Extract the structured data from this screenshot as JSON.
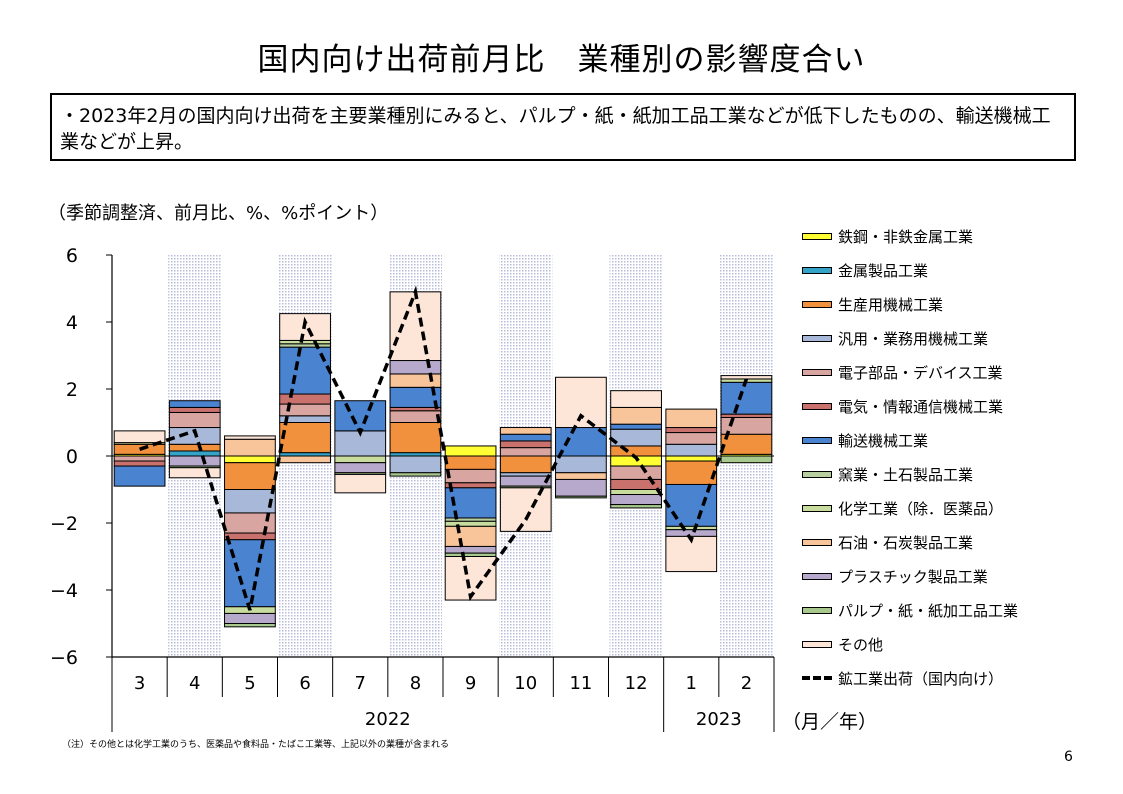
{
  "title": "国内向け出荷前月比　業種別の影響度合い",
  "summary": "・2023年2月の国内向け出荷を主要業種別にみると、パルプ・紙・紙加工品工業などが低下したものの、輸送機械工業などが上昇。",
  "unit_note": "（季節調整済、前月比、%、%ポイント）",
  "unit_label": "（月／年）",
  "footnote": "（注）その他とは化学工業のうち、医薬品や食料品・たばこ工業等、上記以外の業種が含まれる",
  "page_number": "6",
  "chart_data": {
    "type": "bar",
    "stacked": true,
    "categories": [
      "3",
      "4",
      "5",
      "6",
      "7",
      "8",
      "9",
      "10",
      "11",
      "12",
      "1",
      "2"
    ],
    "year_labels": [
      "2022",
      "2023"
    ],
    "ylim": [
      -6,
      6
    ],
    "yticks": [
      "6",
      "4",
      "2",
      "0",
      "−2",
      "−4",
      "−6"
    ],
    "shaded_categories": [
      "4",
      "6",
      "8",
      "10",
      "12",
      "2"
    ],
    "series": [
      {
        "name": "鉄鋼・非鉄金属工業",
        "color": "#ffff33",
        "values": [
          0.05,
          0.0,
          -0.2,
          0.0,
          0.0,
          0.0,
          0.3,
          0.0,
          0.0,
          -0.3,
          -0.15,
          0.05
        ]
      },
      {
        "name": "金属製品工業",
        "color": "#33a3c8",
        "values": [
          0.0,
          0.15,
          0.0,
          0.1,
          0.0,
          0.1,
          0.0,
          0.0,
          0.0,
          0.0,
          0.0,
          0.0
        ]
      },
      {
        "name": "生産用機械工業",
        "color": "#f2913d",
        "values": [
          0.3,
          0.2,
          -0.8,
          0.9,
          0.0,
          0.9,
          -0.4,
          -0.5,
          0.0,
          0.3,
          -0.7,
          0.6
        ]
      },
      {
        "name": "汎用・業務用機械工業",
        "color": "#a8b8d8",
        "values": [
          0.0,
          0.5,
          -0.7,
          0.2,
          0.75,
          -0.5,
          0.0,
          -0.1,
          -0.5,
          0.5,
          0.35,
          0.0
        ]
      },
      {
        "name": "電子部品・デバイス工業",
        "color": "#d9a5a0",
        "values": [
          -0.15,
          0.45,
          -0.6,
          0.35,
          0.0,
          0.35,
          -0.4,
          0.25,
          0.0,
          -0.4,
          0.35,
          0.5
        ]
      },
      {
        "name": "電気・情報通信機械工業",
        "color": "#c8716d",
        "values": [
          -0.15,
          0.15,
          -0.2,
          0.3,
          0.0,
          0.1,
          -0.15,
          0.2,
          0.0,
          -0.3,
          0.15,
          0.1
        ]
      },
      {
        "name": "輸送機械工業",
        "color": "#4a83d0",
        "values": [
          -0.6,
          0.2,
          -2.0,
          1.4,
          0.9,
          0.6,
          -0.9,
          0.2,
          0.85,
          0.15,
          -1.25,
          0.95
        ]
      },
      {
        "name": "窯業・土石製品工業",
        "color": "#b9cfa0",
        "values": [
          0.0,
          0.0,
          0.0,
          0.1,
          0.0,
          0.0,
          -0.1,
          0.0,
          0.0,
          0.0,
          0.0,
          0.0
        ]
      },
      {
        "name": "化学工業（除．医薬品）",
        "color": "#c8dc9e",
        "values": [
          0.05,
          0.0,
          -0.2,
          0.1,
          -0.2,
          0.0,
          -0.15,
          0.0,
          0.0,
          -0.15,
          -0.1,
          0.1
        ]
      },
      {
        "name": "石油・石炭製品工業",
        "color": "#f8c49a",
        "values": [
          0.0,
          0.0,
          0.5,
          -0.2,
          0.0,
          0.4,
          -0.6,
          0.2,
          -0.2,
          0.5,
          0.55,
          0.0
        ]
      },
      {
        "name": "プラスチック製品工業",
        "color": "#b7a9cc",
        "values": [
          0.0,
          -0.3,
          -0.3,
          0.0,
          -0.3,
          0.4,
          -0.2,
          -0.3,
          -0.5,
          -0.3,
          -0.2,
          0.0
        ]
      },
      {
        "name": "パルプ・紙・紙加工品工業",
        "color": "#a7c98e",
        "values": [
          0.0,
          -0.05,
          -0.1,
          0.0,
          -0.05,
          -0.1,
          -0.1,
          -0.05,
          -0.05,
          -0.1,
          0.0,
          -0.2
        ]
      },
      {
        "name": "その他",
        "color": "#fde6d8",
        "values": [
          0.35,
          -0.3,
          0.1,
          0.8,
          -0.55,
          2.05,
          -1.3,
          -1.3,
          1.5,
          0.5,
          -1.05,
          0.1
        ]
      }
    ],
    "line": {
      "name": "鉱工業出荷（国内向け）",
      "values": [
        0.2,
        0.75,
        -4.6,
        4.0,
        0.7,
        4.9,
        -4.2,
        -1.9,
        1.2,
        -0.05,
        -2.5,
        2.3
      ]
    }
  }
}
